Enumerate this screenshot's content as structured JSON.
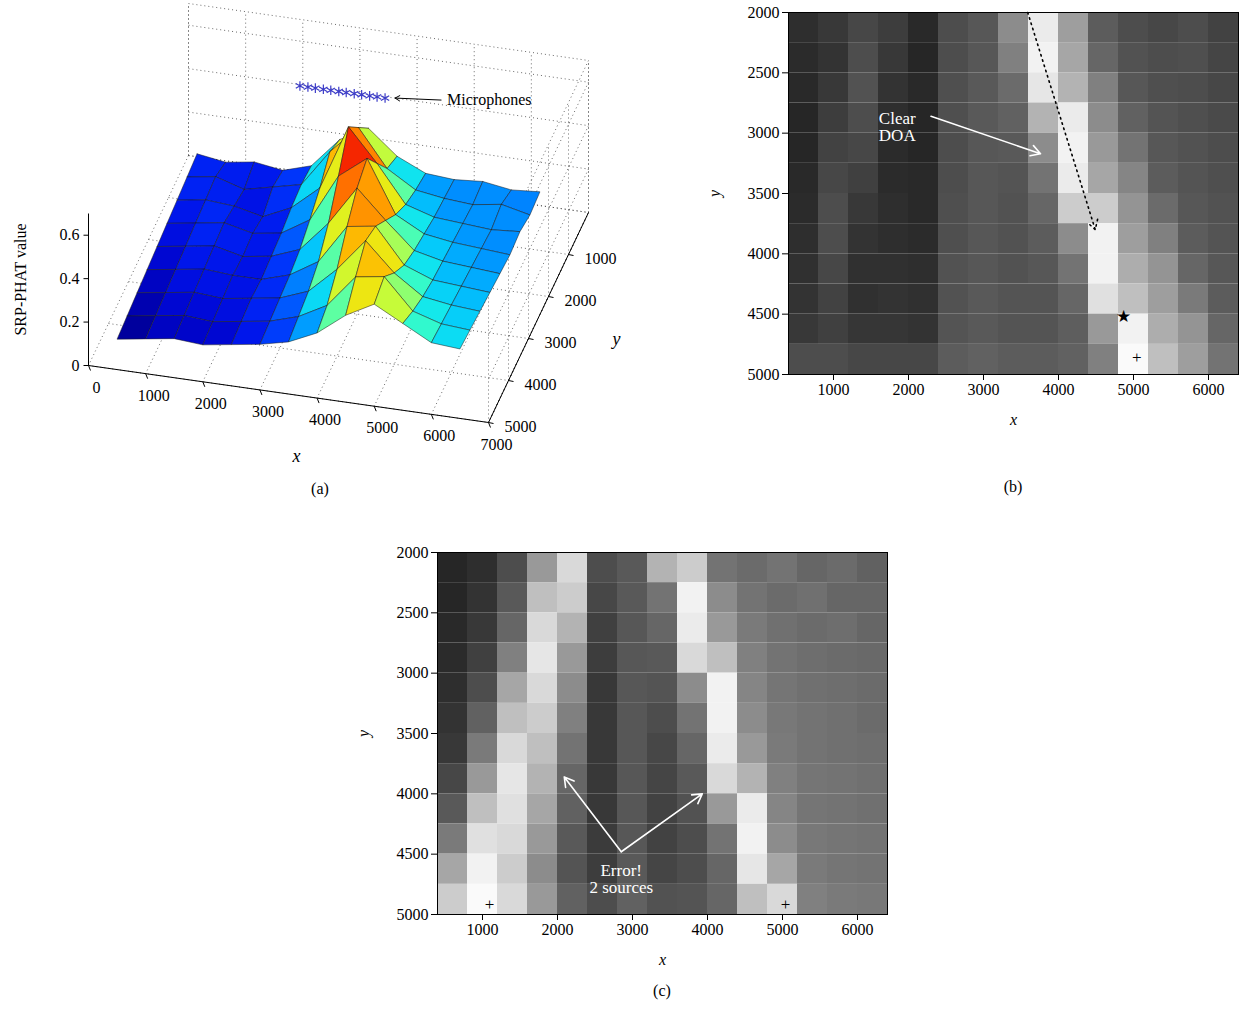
{
  "chart_data": [
    {
      "type": "surface",
      "caption": "(a)",
      "xlabel": "x",
      "ylabel": "y",
      "zlabel": "SRP-PHAT value",
      "xlim": [
        0,
        7000
      ],
      "ylim": [
        0,
        5000
      ],
      "zlim": [
        0,
        0.7
      ],
      "xticks": [
        0,
        1000,
        2000,
        3000,
        4000,
        5000,
        6000,
        7000
      ],
      "yticks": [
        1000,
        2000,
        3000,
        4000,
        5000
      ],
      "zticks": [
        0,
        0.2,
        0.4,
        0.6
      ],
      "grid": true,
      "x": [
        500,
        1000,
        1500,
        2000,
        2500,
        3000,
        3500,
        4000,
        4500,
        5000,
        5500,
        6000,
        6500
      ],
      "y": [
        1000,
        1500,
        2000,
        2500,
        3000,
        3500,
        4000,
        4500,
        5000
      ],
      "values": [
        [
          0.22,
          0.2,
          0.22,
          0.2,
          0.24,
          0.38,
          0.45,
          0.34,
          0.28,
          0.27,
          0.28,
          0.26,
          0.27
        ],
        [
          0.21,
          0.23,
          0.19,
          0.22,
          0.25,
          0.42,
          0.55,
          0.38,
          0.3,
          0.28,
          0.27,
          0.29,
          0.26
        ],
        [
          0.2,
          0.22,
          0.21,
          0.18,
          0.24,
          0.35,
          0.65,
          0.5,
          0.33,
          0.29,
          0.28,
          0.27,
          0.28
        ],
        [
          0.19,
          0.21,
          0.23,
          0.2,
          0.22,
          0.3,
          0.52,
          0.62,
          0.38,
          0.31,
          0.29,
          0.28,
          0.27
        ],
        [
          0.18,
          0.2,
          0.22,
          0.19,
          0.21,
          0.26,
          0.4,
          0.58,
          0.45,
          0.33,
          0.3,
          0.29,
          0.28
        ],
        [
          0.17,
          0.19,
          0.21,
          0.2,
          0.2,
          0.24,
          0.32,
          0.5,
          0.52,
          0.36,
          0.31,
          0.3,
          0.29
        ],
        [
          0.16,
          0.18,
          0.2,
          0.19,
          0.21,
          0.23,
          0.28,
          0.4,
          0.55,
          0.42,
          0.33,
          0.31,
          0.3
        ],
        [
          0.15,
          0.17,
          0.19,
          0.18,
          0.2,
          0.22,
          0.26,
          0.33,
          0.48,
          0.5,
          0.36,
          0.32,
          0.31
        ],
        [
          0.14,
          0.16,
          0.18,
          0.17,
          0.19,
          0.21,
          0.24,
          0.3,
          0.4,
          0.47,
          0.4,
          0.33,
          0.32
        ]
      ],
      "microphones": {
        "label": "Microphones",
        "marker": "asterisk",
        "color": "#3c3cc8",
        "x": [
          2300,
          2440,
          2570,
          2710,
          2840,
          2980,
          3110,
          3250,
          3380,
          3520,
          3650,
          3790
        ],
        "y": 1000,
        "z": 0.6
      }
    },
    {
      "type": "heatmap",
      "caption": "(b)",
      "xlabel": "x",
      "ylabel": "y",
      "xlim": [
        400,
        6400
      ],
      "ylim": [
        2000,
        5000
      ],
      "xticks": [
        1000,
        2000,
        3000,
        4000,
        5000,
        6000
      ],
      "yticks": [
        2000,
        2500,
        3000,
        3500,
        4000,
        4500,
        5000
      ],
      "x_bins": [
        400,
        800,
        1200,
        1600,
        2000,
        2400,
        2800,
        3200,
        3600,
        4000,
        4400,
        4800,
        5200,
        5600,
        6000,
        6400
      ],
      "y_bins": [
        2000,
        2250,
        2500,
        2750,
        3000,
        3250,
        3500,
        3750,
        4000,
        4250,
        4500,
        4750,
        5000
      ],
      "values": [
        [
          0.18,
          0.22,
          0.28,
          0.24,
          0.16,
          0.3,
          0.34,
          0.55,
          0.92,
          0.62,
          0.36,
          0.3,
          0.28,
          0.3,
          0.26
        ],
        [
          0.17,
          0.2,
          0.3,
          0.22,
          0.15,
          0.3,
          0.34,
          0.5,
          0.95,
          0.65,
          0.4,
          0.32,
          0.3,
          0.31,
          0.27
        ],
        [
          0.16,
          0.22,
          0.32,
          0.2,
          0.16,
          0.31,
          0.35,
          0.42,
          0.9,
          0.7,
          0.5,
          0.34,
          0.31,
          0.3,
          0.28
        ],
        [
          0.15,
          0.24,
          0.3,
          0.18,
          0.15,
          0.31,
          0.35,
          0.38,
          0.7,
          0.92,
          0.55,
          0.38,
          0.33,
          0.31,
          0.29
        ],
        [
          0.15,
          0.26,
          0.28,
          0.17,
          0.15,
          0.3,
          0.34,
          0.35,
          0.55,
          0.95,
          0.6,
          0.45,
          0.34,
          0.32,
          0.3
        ],
        [
          0.16,
          0.28,
          0.25,
          0.17,
          0.16,
          0.3,
          0.34,
          0.33,
          0.45,
          0.92,
          0.65,
          0.52,
          0.36,
          0.33,
          0.31
        ],
        [
          0.17,
          0.3,
          0.22,
          0.18,
          0.16,
          0.31,
          0.34,
          0.32,
          0.4,
          0.8,
          0.8,
          0.58,
          0.42,
          0.34,
          0.32
        ],
        [
          0.18,
          0.3,
          0.2,
          0.18,
          0.17,
          0.31,
          0.34,
          0.32,
          0.36,
          0.55,
          0.95,
          0.62,
          0.5,
          0.36,
          0.33
        ],
        [
          0.19,
          0.28,
          0.19,
          0.19,
          0.18,
          0.32,
          0.34,
          0.32,
          0.34,
          0.45,
          0.95,
          0.68,
          0.58,
          0.4,
          0.34
        ],
        [
          0.2,
          0.26,
          0.19,
          0.2,
          0.19,
          0.32,
          0.35,
          0.33,
          0.33,
          0.4,
          0.88,
          0.75,
          0.62,
          0.48,
          0.36
        ],
        [
          0.22,
          0.25,
          0.21,
          0.21,
          0.2,
          0.33,
          0.35,
          0.33,
          0.33,
          0.37,
          0.6,
          0.95,
          0.68,
          0.58,
          0.4
        ],
        [
          0.3,
          0.3,
          0.28,
          0.28,
          0.28,
          0.36,
          0.38,
          0.36,
          0.36,
          0.38,
          0.5,
          0.98,
          0.75,
          0.62,
          0.45
        ]
      ],
      "annotations": [
        {
          "text": "Clear\nDOA",
          "x": 1850,
          "y": 2950,
          "color": "#ffffff",
          "arrows": [
            {
              "from": [
                2300,
                2860
              ],
              "to": [
                3760,
                3170
              ]
            }
          ]
        }
      ],
      "lines": [
        {
          "x1": 3590,
          "y1": 2000,
          "x2": 4490,
          "y2": 3800,
          "line_style": "dotted",
          "color": "#000000"
        }
      ],
      "markers": [
        {
          "x": 4873,
          "y": 4520,
          "symbol": "★"
        },
        {
          "x": 5045,
          "y": 4857,
          "symbol": "+"
        }
      ]
    },
    {
      "type": "heatmap",
      "caption": "(c)",
      "xlabel": "x",
      "ylabel": "y",
      "xlim": [
        400,
        6400
      ],
      "ylim": [
        2000,
        5000
      ],
      "xticks": [
        1000,
        2000,
        3000,
        4000,
        5000,
        6000
      ],
      "yticks": [
        2000,
        2500,
        3000,
        3500,
        4000,
        4500,
        5000
      ],
      "x_bins": [
        400,
        800,
        1200,
        1600,
        2000,
        2400,
        2800,
        3200,
        3600,
        4000,
        4400,
        4800,
        5200,
        5600,
        6000,
        6400
      ],
      "y_bins": [
        2000,
        2250,
        2500,
        2750,
        3000,
        3250,
        3500,
        3750,
        4000,
        4250,
        4500,
        4750,
        5000
      ],
      "values": [
        [
          0.15,
          0.18,
          0.3,
          0.6,
          0.85,
          0.3,
          0.35,
          0.7,
          0.8,
          0.45,
          0.42,
          0.45,
          0.4,
          0.42,
          0.38
        ],
        [
          0.15,
          0.2,
          0.35,
          0.75,
          0.8,
          0.28,
          0.35,
          0.45,
          0.95,
          0.55,
          0.45,
          0.42,
          0.44,
          0.4,
          0.4
        ],
        [
          0.16,
          0.22,
          0.4,
          0.85,
          0.7,
          0.25,
          0.34,
          0.4,
          0.92,
          0.6,
          0.48,
          0.44,
          0.42,
          0.43,
          0.4
        ],
        [
          0.17,
          0.25,
          0.5,
          0.9,
          0.6,
          0.24,
          0.34,
          0.35,
          0.85,
          0.75,
          0.5,
          0.45,
          0.43,
          0.42,
          0.41
        ],
        [
          0.18,
          0.3,
          0.65,
          0.85,
          0.55,
          0.22,
          0.34,
          0.33,
          0.55,
          0.95,
          0.52,
          0.46,
          0.44,
          0.43,
          0.42
        ],
        [
          0.2,
          0.38,
          0.75,
          0.8,
          0.5,
          0.22,
          0.34,
          0.3,
          0.45,
          0.95,
          0.55,
          0.47,
          0.45,
          0.44,
          0.42
        ],
        [
          0.22,
          0.48,
          0.85,
          0.75,
          0.45,
          0.22,
          0.34,
          0.28,
          0.4,
          0.92,
          0.6,
          0.48,
          0.45,
          0.44,
          0.43
        ],
        [
          0.28,
          0.6,
          0.9,
          0.7,
          0.4,
          0.22,
          0.34,
          0.27,
          0.35,
          0.85,
          0.7,
          0.5,
          0.46,
          0.45,
          0.44
        ],
        [
          0.35,
          0.75,
          0.88,
          0.65,
          0.38,
          0.22,
          0.34,
          0.26,
          0.32,
          0.6,
          0.92,
          0.52,
          0.46,
          0.45,
          0.44
        ],
        [
          0.48,
          0.88,
          0.85,
          0.6,
          0.35,
          0.23,
          0.34,
          0.26,
          0.3,
          0.45,
          0.95,
          0.55,
          0.47,
          0.46,
          0.45
        ],
        [
          0.65,
          0.95,
          0.8,
          0.55,
          0.33,
          0.24,
          0.35,
          0.27,
          0.3,
          0.4,
          0.9,
          0.65,
          0.48,
          0.46,
          0.45
        ],
        [
          0.8,
          0.98,
          0.85,
          0.6,
          0.38,
          0.3,
          0.38,
          0.32,
          0.33,
          0.4,
          0.75,
          0.85,
          0.5,
          0.48,
          0.47
        ]
      ],
      "annotations": [
        {
          "text": "Error!\n2 sources",
          "x": 2850,
          "y": 4710,
          "color": "#ffffff",
          "arrows": [
            {
              "from": [
                2850,
                4480
              ],
              "to": [
                2090,
                3860
              ]
            },
            {
              "from": [
                2850,
                4480
              ],
              "to": [
                3930,
                4000
              ]
            }
          ]
        }
      ],
      "lines": [],
      "markers": [
        {
          "x": 1093,
          "y": 4915,
          "symbol": "+"
        },
        {
          "x": 5040,
          "y": 4915,
          "symbol": "+"
        }
      ]
    }
  ]
}
